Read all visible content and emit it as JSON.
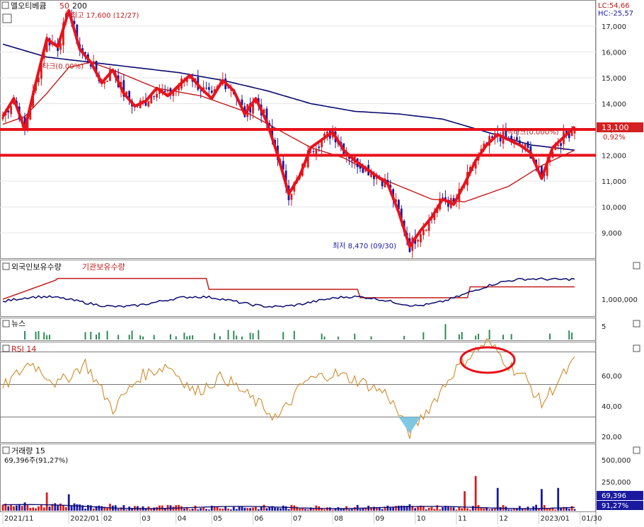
{
  "title": "엘오티베큠",
  "ma_labels": [
    "50",
    "200"
  ],
  "indicators": {
    "lc": "LC:54,66",
    "hc": "HC:-25,57",
    "price_box": "13,100",
    "price_pct": "0,92%",
    "high_note": "최고 17,600 (12/27)",
    "low_note": "최저 8,470 (09/30)",
    "fib_upper": "백타크(0.000%)",
    "fib_lower": "타크(0.00%)"
  },
  "panels": {
    "holdings": {
      "label_foreign": "외국인보유수량",
      "label_inst": "기관보유수량",
      "tick": "1,000,000"
    },
    "news": {
      "label": "뉴스",
      "tick": "5"
    },
    "rsi": {
      "label": "RSI 14",
      "ticks": [
        "60,00",
        "40,00",
        "20,00"
      ]
    },
    "volume": {
      "label": "거래량  15",
      "readout": "69,396주(91,27%)",
      "ticks": [
        "500,000",
        "250,000"
      ],
      "box_value": "69,396",
      "box_pct": "91,27%"
    }
  },
  "colors": {
    "up": "#d42020",
    "down": "#1a1aa0",
    "ma200": "#0a0a6e",
    "ma50": "#c41a1a",
    "rsi": "#d08a2a",
    "annot": "#e8111b",
    "news": "#2e8b57"
  },
  "chart_data": {
    "type": "candlestick",
    "xlabels": [
      "2021/11",
      "2022/01",
      "02",
      "03",
      "04",
      "05",
      "06",
      "07",
      "08",
      "09",
      "10",
      "11",
      "12",
      "2023/01",
      "01/30"
    ],
    "y_ticks": [
      "17,000",
      "16,000",
      "15,000",
      "14,000",
      "13,000",
      "12,000",
      "11,000",
      "10,000",
      "9,000"
    ],
    "ylim": [
      8100,
      17900
    ],
    "price_waypoints": [
      [
        0,
        13500
      ],
      [
        4,
        14200
      ],
      [
        8,
        13000
      ],
      [
        12,
        14800
      ],
      [
        16,
        16500
      ],
      [
        20,
        16200
      ],
      [
        24,
        17600
      ],
      [
        28,
        16100
      ],
      [
        32,
        15600
      ],
      [
        36,
        14800
      ],
      [
        40,
        15300
      ],
      [
        44,
        14400
      ],
      [
        48,
        13900
      ],
      [
        52,
        14100
      ],
      [
        56,
        14600
      ],
      [
        60,
        14300
      ],
      [
        64,
        14700
      ],
      [
        68,
        15100
      ],
      [
        72,
        14600
      ],
      [
        76,
        14200
      ],
      [
        80,
        14900
      ],
      [
        84,
        14500
      ],
      [
        88,
        13600
      ],
      [
        92,
        14200
      ],
      [
        96,
        13300
      ],
      [
        100,
        12000
      ],
      [
        104,
        10500
      ],
      [
        108,
        11200
      ],
      [
        112,
        12300
      ],
      [
        116,
        12600
      ],
      [
        120,
        12900
      ],
      [
        124,
        12200
      ],
      [
        128,
        11800
      ],
      [
        132,
        11500
      ],
      [
        136,
        11200
      ],
      [
        140,
        10900
      ],
      [
        144,
        9800
      ],
      [
        148,
        8470
      ],
      [
        152,
        9100
      ],
      [
        156,
        9600
      ],
      [
        160,
        10300
      ],
      [
        164,
        10100
      ],
      [
        168,
        10900
      ],
      [
        172,
        11800
      ],
      [
        176,
        12400
      ],
      [
        180,
        12800
      ],
      [
        184,
        12600
      ],
      [
        188,
        12400
      ],
      [
        192,
        12100
      ],
      [
        196,
        11100
      ],
      [
        200,
        12300
      ],
      [
        204,
        12700
      ],
      [
        208,
        13100
      ]
    ],
    "ma50_waypoints": [
      [
        0,
        13200
      ],
      [
        8,
        13500
      ],
      [
        16,
        14400
      ],
      [
        24,
        15400
      ],
      [
        32,
        15600
      ],
      [
        40,
        15300
      ],
      [
        56,
        14600
      ],
      [
        72,
        14300
      ],
      [
        88,
        13700
      ],
      [
        100,
        13000
      ],
      [
        112,
        12300
      ],
      [
        124,
        11900
      ],
      [
        140,
        11000
      ],
      [
        156,
        10300
      ],
      [
        168,
        10200
      ],
      [
        184,
        10800
      ],
      [
        196,
        11600
      ],
      [
        208,
        12200
      ]
    ],
    "ma200_waypoints": [
      [
        0,
        16300
      ],
      [
        16,
        15800
      ],
      [
        32,
        15600
      ],
      [
        48,
        15400
      ],
      [
        64,
        15200
      ],
      [
        80,
        14900
      ],
      [
        96,
        14500
      ],
      [
        112,
        14000
      ],
      [
        128,
        13700
      ],
      [
        144,
        13600
      ],
      [
        160,
        13400
      ],
      [
        176,
        12900
      ],
      [
        192,
        12400
      ],
      [
        208,
        12200
      ]
    ],
    "horizontal_levels": [
      13000,
      12000
    ],
    "rsi_waypoints": [
      [
        0,
        48
      ],
      [
        10,
        64
      ],
      [
        20,
        50
      ],
      [
        30,
        63
      ],
      [
        40,
        35
      ],
      [
        50,
        55
      ],
      [
        60,
        62
      ],
      [
        70,
        45
      ],
      [
        80,
        55
      ],
      [
        90,
        42
      ],
      [
        100,
        29
      ],
      [
        110,
        52
      ],
      [
        120,
        57
      ],
      [
        130,
        52
      ],
      [
        140,
        44
      ],
      [
        148,
        20
      ],
      [
        156,
        38
      ],
      [
        164,
        58
      ],
      [
        170,
        68
      ],
      [
        176,
        76
      ],
      [
        180,
        70
      ],
      [
        184,
        62
      ],
      [
        190,
        54
      ],
      [
        196,
        38
      ],
      [
        202,
        52
      ],
      [
        208,
        64
      ]
    ],
    "rsi_levels": [
      70,
      50,
      30
    ],
    "volume_ylim": [
      0,
      600000
    ],
    "volume_highlight": [
      [
        16,
        140000
      ],
      [
        24,
        150000
      ],
      [
        148,
        60000
      ],
      [
        168,
        180000
      ],
      [
        172,
        320000
      ],
      [
        180,
        210000
      ],
      [
        196,
        200000
      ],
      [
        202,
        210000
      ]
    ]
  }
}
